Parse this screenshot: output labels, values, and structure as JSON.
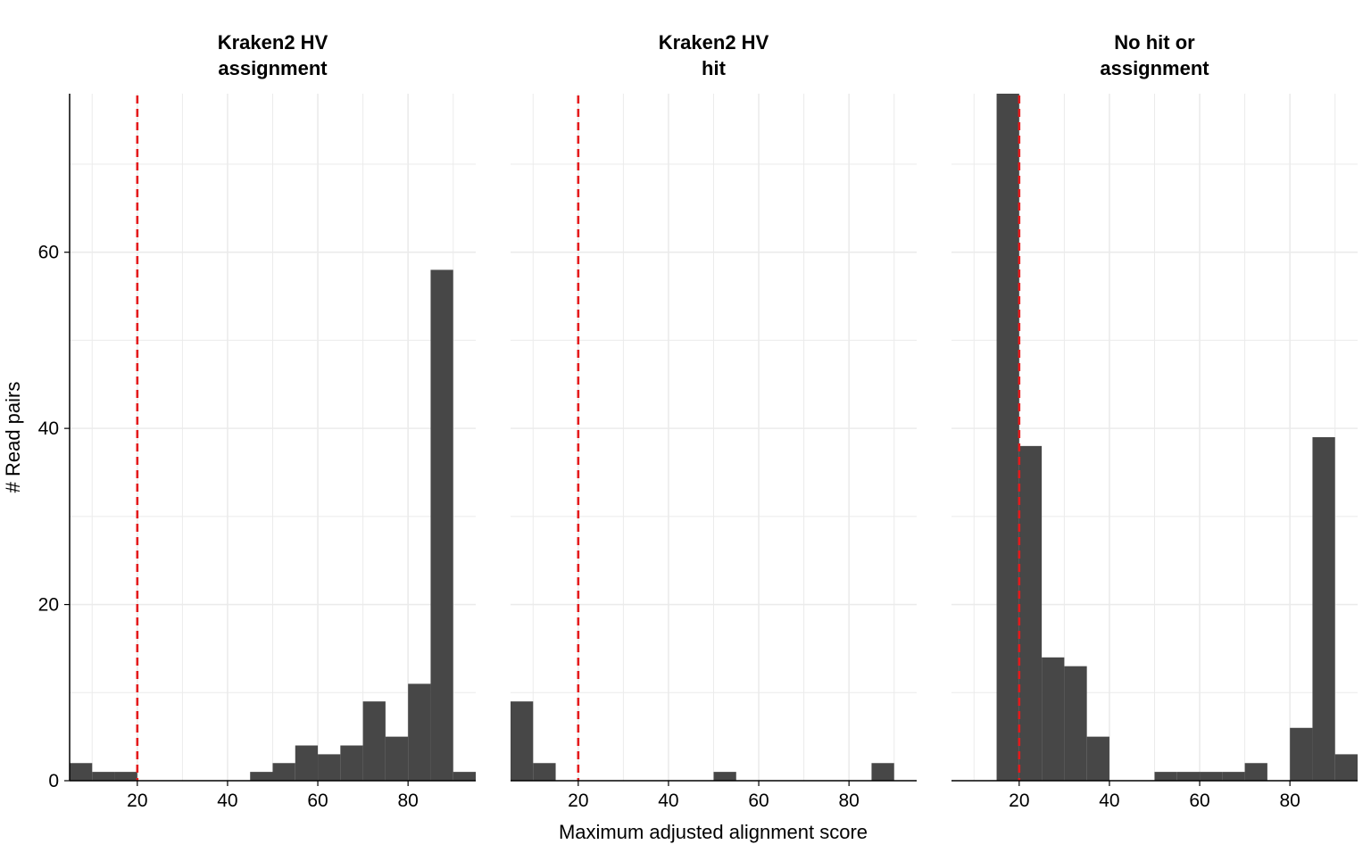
{
  "chart_data": {
    "type": "bar",
    "xlabel": "Maximum adjusted alignment score",
    "ylabel": "# Read pairs",
    "xlim": [
      5,
      95
    ],
    "ylim": [
      0,
      78
    ],
    "x_ticks": [
      "20",
      "40",
      "60",
      "80"
    ],
    "y_ticks": [
      "0",
      "20",
      "40",
      "60"
    ],
    "bin_width": 5,
    "grid": true,
    "threshold": {
      "x": 20,
      "color": "#e41a1c",
      "style": "dashed"
    },
    "bar_color": "#474747",
    "panels": [
      {
        "title": [
          "Kraken2 HV",
          "assignment"
        ],
        "bins": [
          {
            "x0": 5,
            "x1": 10,
            "count": 2
          },
          {
            "x0": 10,
            "x1": 15,
            "count": 1
          },
          {
            "x0": 15,
            "x1": 20,
            "count": 1
          },
          {
            "x0": 45,
            "x1": 50,
            "count": 1
          },
          {
            "x0": 50,
            "x1": 55,
            "count": 2
          },
          {
            "x0": 55,
            "x1": 60,
            "count": 4
          },
          {
            "x0": 60,
            "x1": 65,
            "count": 3
          },
          {
            "x0": 65,
            "x1": 70,
            "count": 4
          },
          {
            "x0": 70,
            "x1": 75,
            "count": 9
          },
          {
            "x0": 75,
            "x1": 80,
            "count": 5
          },
          {
            "x0": 80,
            "x1": 85,
            "count": 11
          },
          {
            "x0": 85,
            "x1": 90,
            "count": 58
          },
          {
            "x0": 90,
            "x1": 95,
            "count": 1
          }
        ]
      },
      {
        "title": [
          "Kraken2 HV",
          "hit"
        ],
        "bins": [
          {
            "x0": 5,
            "x1": 10,
            "count": 9
          },
          {
            "x0": 10,
            "x1": 15,
            "count": 2
          },
          {
            "x0": 50,
            "x1": 55,
            "count": 1
          },
          {
            "x0": 85,
            "x1": 90,
            "count": 2
          }
        ]
      },
      {
        "title": [
          "No hit or",
          "assignment"
        ],
        "bins": [
          {
            "x0": 15,
            "x1": 20,
            "count": 78
          },
          {
            "x0": 20,
            "x1": 25,
            "count": 38
          },
          {
            "x0": 25,
            "x1": 30,
            "count": 14
          },
          {
            "x0": 30,
            "x1": 35,
            "count": 13
          },
          {
            "x0": 35,
            "x1": 40,
            "count": 5
          },
          {
            "x0": 50,
            "x1": 55,
            "count": 1
          },
          {
            "x0": 55,
            "x1": 60,
            "count": 1
          },
          {
            "x0": 60,
            "x1": 65,
            "count": 1
          },
          {
            "x0": 65,
            "x1": 70,
            "count": 1
          },
          {
            "x0": 70,
            "x1": 75,
            "count": 2
          },
          {
            "x0": 80,
            "x1": 85,
            "count": 6
          },
          {
            "x0": 85,
            "x1": 90,
            "count": 39
          },
          {
            "x0": 90,
            "x1": 95,
            "count": 3
          }
        ]
      }
    ]
  }
}
